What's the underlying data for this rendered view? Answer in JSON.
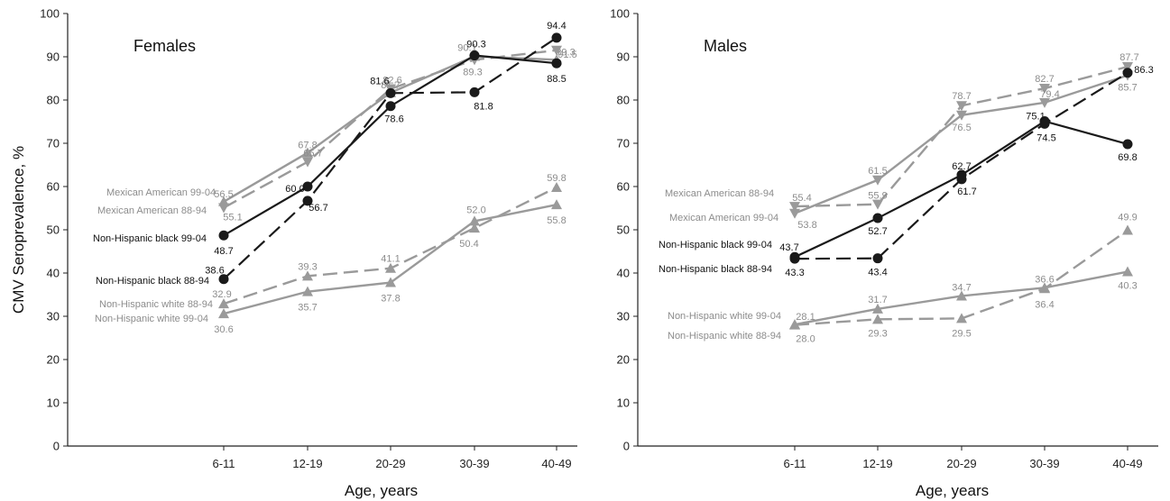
{
  "chart_data": {
    "type": "line",
    "ylabel": "CMV Seroprevalence, %",
    "xlabel": "Age, years",
    "categories": [
      "6-11",
      "12-19",
      "20-29",
      "30-39",
      "40-49"
    ],
    "y_ticks": [
      "0",
      "10",
      "20",
      "30",
      "40",
      "50",
      "60",
      "70",
      "80",
      "90",
      "100"
    ],
    "ylim": [
      0,
      100
    ],
    "grid": false,
    "panels": [
      {
        "title": "Females",
        "series": [
          {
            "name": "Mexican American 99-04",
            "values": [
              56.5,
              67.8,
              81.7,
              90.1,
              89.3
            ],
            "labels": [
              "56.5",
              "67.8",
              "81.7",
              "90.1",
              "89.3"
            ],
            "color": "#9a9a9a",
            "dash": "solid",
            "marker": "triangle-up"
          },
          {
            "name": "Mexican American 88-94",
            "values": [
              55.1,
              65.7,
              82.6,
              89.3,
              91.5
            ],
            "labels": [
              "55.1",
              "65.7",
              "82.6",
              "89.3",
              "91.5"
            ],
            "color": "#9a9a9a",
            "dash": "dashed",
            "marker": "triangle-down"
          },
          {
            "name": "Non-Hispanic black 99-04",
            "values": [
              48.7,
              60.0,
              78.6,
              90.3,
              88.5
            ],
            "labels": [
              "48.7",
              "60.0",
              "78.6",
              "90.3",
              "88.5"
            ],
            "color": "#1a1a1a",
            "dash": "solid",
            "marker": "circle"
          },
          {
            "name": "Non-Hispanic black 88-94",
            "values": [
              38.6,
              56.7,
              81.6,
              81.8,
              94.4
            ],
            "labels": [
              "38.6",
              "56.7",
              "81.6",
              "81.8",
              "94.4"
            ],
            "color": "#1a1a1a",
            "dash": "dashed",
            "marker": "circle"
          },
          {
            "name": "Non-Hispanic white 88-94",
            "values": [
              32.9,
              39.3,
              41.1,
              50.4,
              59.8
            ],
            "labels": [
              "32.9",
              "39.3",
              "41.1",
              "50.4",
              "59.8"
            ],
            "color": "#9a9a9a",
            "dash": "dashed",
            "marker": "triangle-up"
          },
          {
            "name": "Non-Hispanic white 99-04",
            "values": [
              30.6,
              35.7,
              37.8,
              52.0,
              55.8
            ],
            "labels": [
              "30.6",
              "35.7",
              "37.8",
              "52.0",
              "55.8"
            ],
            "color": "#9a9a9a",
            "dash": "solid",
            "marker": "triangle-up"
          }
        ]
      },
      {
        "title": "Males",
        "series": [
          {
            "name": "Mexican American 88-94",
            "values": [
              55.4,
              55.9,
              78.7,
              82.7,
              87.7
            ],
            "labels": [
              "55.4",
              "55.9",
              "78.7",
              "82.7",
              "87.7"
            ],
            "color": "#9a9a9a",
            "dash": "dashed",
            "marker": "triangle-down"
          },
          {
            "name": "Mexican American 99-04",
            "values": [
              53.8,
              61.5,
              76.5,
              79.4,
              85.7
            ],
            "labels": [
              "53.8",
              "61.5",
              "76.5",
              "79.4",
              "85.7"
            ],
            "color": "#9a9a9a",
            "dash": "solid",
            "marker": "triangle-down"
          },
          {
            "name": "Non-Hispanic black 99-04",
            "values": [
              43.7,
              52.7,
              62.7,
              75.1,
              69.8
            ],
            "labels": [
              "43.7",
              "52.7",
              "62.7",
              "75.1",
              "69.8"
            ],
            "color": "#1a1a1a",
            "dash": "solid",
            "marker": "circle"
          },
          {
            "name": "Non-Hispanic black 88-94",
            "values": [
              43.3,
              43.4,
              61.7,
              74.5,
              86.3
            ],
            "labels": [
              "43.3",
              "43.4",
              "61.7",
              "74.5",
              "86.3"
            ],
            "color": "#1a1a1a",
            "dash": "dashed",
            "marker": "circle"
          },
          {
            "name": "Non-Hispanic white 99-04",
            "values": [
              28.1,
              31.7,
              34.7,
              36.6,
              40.3
            ],
            "labels": [
              "28.1",
              "31.7",
              "34.7",
              "36.6",
              "40.3"
            ],
            "color": "#9a9a9a",
            "dash": "solid",
            "marker": "triangle-up"
          },
          {
            "name": "Non-Hispanic white 88-94",
            "values": [
              28.0,
              29.3,
              29.5,
              36.4,
              49.9
            ],
            "labels": [
              "28.0",
              "29.3",
              "29.5",
              "36.4",
              "49.9"
            ],
            "color": "#9a9a9a",
            "dash": "dashed",
            "marker": "triangle-up"
          }
        ]
      }
    ]
  }
}
